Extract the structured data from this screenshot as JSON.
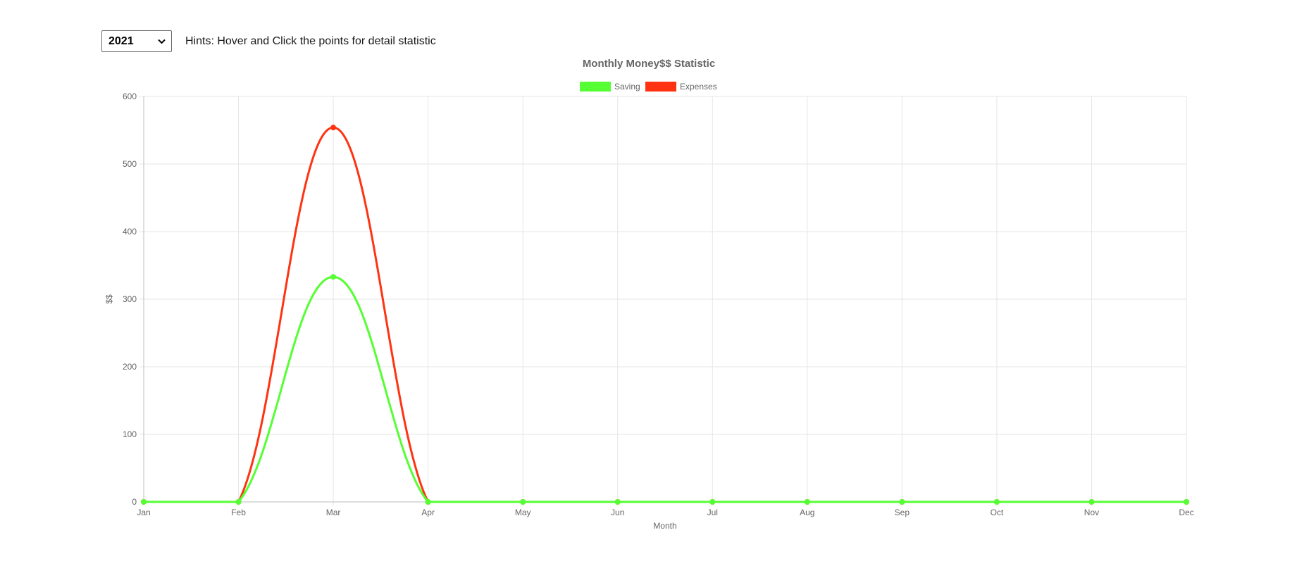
{
  "controls": {
    "year_select": {
      "selected": "2021",
      "options": [
        "2021"
      ]
    },
    "hint": "Hints: Hover and Click the points for detail statistic"
  },
  "colors": {
    "saving": "#55ff33",
    "expenses": "#ff3311",
    "grid": "#e6e6e6",
    "axis": "#bdbdbd",
    "text": "#666666"
  },
  "chart_data": {
    "type": "line",
    "title": "Monthly Money$$ Statistic",
    "xlabel": "Month",
    "ylabel": "$$",
    "categories": [
      "Jan",
      "Feb",
      "Mar",
      "Apr",
      "May",
      "Jun",
      "Jul",
      "Aug",
      "Sep",
      "Oct",
      "Nov",
      "Dec"
    ],
    "ylim": [
      0,
      600
    ],
    "yticks": [
      0,
      100,
      200,
      300,
      400,
      500,
      600
    ],
    "grid": true,
    "legend_position": "top-center",
    "smooth": true,
    "series": [
      {
        "name": "Saving",
        "color": "#55ff33",
        "values": [
          0,
          0,
          333,
          0,
          0,
          0,
          0,
          0,
          0,
          0,
          0,
          0
        ]
      },
      {
        "name": "Expenses",
        "color": "#ff3311",
        "values": [
          0,
          0,
          554,
          0,
          0,
          0,
          0,
          0,
          0,
          0,
          0,
          0
        ]
      }
    ]
  }
}
